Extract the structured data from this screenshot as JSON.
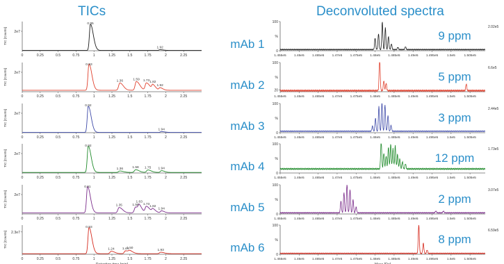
{
  "headings": {
    "tic": "TICs",
    "deconv": "Deconvoluted spectra"
  },
  "samples": [
    "mAb 1",
    "mAb 2",
    "mAb 3",
    "mAb 4",
    "mAb 5",
    "mAb 6"
  ],
  "ppm_labels": [
    "9 ppm",
    "5 ppm",
    "3 ppm",
    "12 ppm",
    "2 ppm",
    "8 ppm"
  ],
  "colors": [
    "#1a1a1a",
    "#e0402d",
    "#3d49a8",
    "#1f8a2a",
    "#7a2b8a",
    "#d62a1e"
  ],
  "chart_data": [
    {
      "type": "line",
      "panel": "TIC",
      "title": "mAb 1",
      "ylabel": "TIC [Counts]",
      "xlabel": "",
      "xlim": [
        0,
        2.5
      ],
      "ylim": [
        0,
        30000000
      ],
      "yticks": [
        {
          "v": 20000000,
          "label": "2e7"
        }
      ],
      "xticks": [
        "0",
        "0.25",
        "0.5",
        "0.75",
        "1",
        "1.25",
        "1.5",
        "1.75",
        "2",
        "2.25"
      ],
      "series": [
        {
          "peaks": [
            [
              0.95,
              27000000,
              0.025
            ],
            [
              1.92,
              700000,
              0.03
            ]
          ],
          "baseline": 300000
        }
      ],
      "annotations": [
        {
          "x": 0.95,
          "label": "0.95"
        },
        {
          "x": 1.92,
          "label": "1.92"
        }
      ]
    },
    {
      "type": "line",
      "panel": "TIC",
      "title": "mAb 2",
      "ylabel": "TIC [Counts]",
      "xlabel": "",
      "xlim": [
        0,
        2.5
      ],
      "ylim": [
        0,
        30000000
      ],
      "yticks": [
        {
          "v": 20000000,
          "label": "2e7"
        }
      ],
      "xticks": [
        "0",
        "0.25",
        "0.5",
        "0.75",
        "1",
        "1.25",
        "1.5",
        "1.75",
        "2",
        "2.25"
      ],
      "series": [
        {
          "peaks": [
            [
              0.93,
              27000000,
              0.025
            ],
            [
              1.36,
              7500000,
              0.03
            ],
            [
              1.59,
              9000000,
              0.03
            ],
            [
              1.73,
              7500000,
              0.03
            ],
            [
              1.82,
              5000000,
              0.025
            ],
            [
              1.92,
              2500000,
              0.025
            ]
          ],
          "baseline": 1500000
        }
      ],
      "annotations": [
        {
          "x": 0.93,
          "label": "0.93"
        },
        {
          "x": 1.36,
          "label": "1.36"
        },
        {
          "x": 1.59,
          "label": "1.59"
        },
        {
          "x": 1.73,
          "label": "1.73"
        },
        {
          "x": 1.82,
          "label": "1.82"
        },
        {
          "x": 1.92,
          "label": "1.92"
        }
      ]
    },
    {
      "type": "line",
      "panel": "TIC",
      "title": "mAb 3",
      "ylabel": "TIC [Counts]",
      "xlabel": "",
      "xlim": [
        0,
        2.5
      ],
      "ylim": [
        0,
        30000000
      ],
      "yticks": [
        {
          "v": 20000000,
          "label": "2e7"
        }
      ],
      "xticks": [
        "0",
        "0.25",
        "0.5",
        "0.75",
        "1",
        "1.25",
        "1.5",
        "1.75",
        "2",
        "2.25"
      ],
      "series": [
        {
          "peaks": [
            [
              0.92,
              27000000,
              0.025
            ],
            [
              1.94,
              800000,
              0.03
            ]
          ],
          "baseline": 300000
        }
      ],
      "annotations": [
        {
          "x": 0.92,
          "label": "0.92"
        },
        {
          "x": 1.94,
          "label": "1.94"
        }
      ]
    },
    {
      "type": "line",
      "panel": "TIC",
      "title": "mAb 4",
      "ylabel": "TIC [Counts]",
      "xlabel": "",
      "xlim": [
        0,
        2.5
      ],
      "ylim": [
        0,
        30000000
      ],
      "yticks": [
        {
          "v": 20000000,
          "label": "2e7"
        }
      ],
      "xticks": [
        "0",
        "0.25",
        "0.5",
        "0.75",
        "1",
        "1.25",
        "1.5",
        "1.75",
        "2",
        "2.25"
      ],
      "series": [
        {
          "peaks": [
            [
              0.92,
              27000000,
              0.025
            ],
            [
              1.36,
              1500000,
              0.03
            ],
            [
              1.58,
              2800000,
              0.03
            ],
            [
              1.75,
              2500000,
              0.03
            ],
            [
              1.94,
              1800000,
              0.025
            ]
          ],
          "baseline": 600000
        }
      ],
      "annotations": [
        {
          "x": 0.92,
          "label": "0.92"
        },
        {
          "x": 1.36,
          "label": "1.36"
        },
        {
          "x": 1.58,
          "label": "1.58"
        },
        {
          "x": 1.75,
          "label": "1.75"
        },
        {
          "x": 1.94,
          "label": "1.94"
        }
      ]
    },
    {
      "type": "line",
      "panel": "TIC",
      "title": "mAb 5",
      "ylabel": "TIC [Counts]",
      "xlabel": "",
      "xlim": [
        0,
        2.5
      ],
      "ylim": [
        0,
        30000000
      ],
      "yticks": [
        {
          "v": 20000000,
          "label": "2e7"
        }
      ],
      "xticks": [
        "0",
        "0.25",
        "0.5",
        "0.75",
        "1",
        "1.25",
        "1.5",
        "1.75",
        "2",
        "2.25"
      ],
      "series": [
        {
          "peaks": [
            [
              0.91,
              27000000,
              0.025
            ],
            [
              1.35,
              5500000,
              0.03
            ],
            [
              1.58,
              6000000,
              0.03
            ],
            [
              1.63,
              5500000,
              0.025
            ],
            [
              1.73,
              6500000,
              0.03
            ],
            [
              1.82,
              3500000,
              0.025
            ],
            [
              1.94,
              2000000,
              0.025
            ]
          ],
          "baseline": 1200000
        }
      ],
      "annotations": [
        {
          "x": 0.91,
          "label": "0.91"
        },
        {
          "x": 1.35,
          "label": "1.35"
        },
        {
          "x": 1.58,
          "label": "1.58"
        },
        {
          "x": 1.63,
          "label": "1.63"
        },
        {
          "x": 1.73,
          "label": "1.73"
        },
        {
          "x": 1.82,
          "label": "1.82"
        },
        {
          "x": 1.94,
          "label": "1.94"
        }
      ]
    },
    {
      "type": "line",
      "panel": "TIC",
      "title": "mAb 6",
      "ylabel": "TIC [Counts]",
      "xlabel": "Retention time [min]",
      "xlim": [
        0,
        2.5
      ],
      "ylim": [
        0,
        30000000
      ],
      "yticks": [
        {
          "v": 23000000,
          "label": "2.3e7"
        }
      ],
      "xticks": [
        "0",
        "0.25",
        "0.5",
        "0.75",
        "1",
        "1.25",
        "1.5",
        "1.75",
        "2",
        "2.25"
      ],
      "series": [
        {
          "peaks": [
            [
              0.93,
              27000000,
              0.025
            ],
            [
              1.24,
              2500000,
              0.03
            ],
            [
              1.44,
              3000000,
              0.03
            ],
            [
              1.5,
              2200000,
              0.03
            ],
            [
              1.93,
              1500000,
              0.03
            ]
          ],
          "baseline": 600000
        }
      ],
      "annotations": [
        {
          "x": 0.93,
          "label": "0.93"
        },
        {
          "x": 1.24,
          "label": "1.24"
        },
        {
          "x": 1.44,
          "label": "1.44"
        },
        {
          "x": 1.5,
          "label": "1.50"
        },
        {
          "x": 1.93,
          "label": "1.93"
        }
      ]
    },
    {
      "type": "line",
      "panel": "Deconvolution",
      "title": "mAb 1",
      "ylabel": "%",
      "xlabel": "",
      "xlim": [
        145500,
        150900
      ],
      "ylim": [
        0,
        100
      ],
      "yticks": [
        {
          "v": 100,
          "label": "100"
        },
        {
          "v": 50,
          "label": "%"
        },
        {
          "v": 0,
          "label": "0"
        }
      ],
      "xticks": [
        "1.455e5",
        "1.46e5",
        "1.465e5",
        "1.47e5",
        "1.475e5",
        "1.48e5",
        "1.485e5",
        "1.49e5",
        "1.495e5",
        "1.5e5",
        "1.505e5"
      ],
      "intensity_label": "2.02e5",
      "series": [
        {
          "peaks": [
            [
              148000,
              40
            ],
            [
              148090,
              55
            ],
            [
              148190,
              95
            ],
            [
              148270,
              75
            ],
            [
              148350,
              45
            ],
            [
              148430,
              20
            ],
            [
              148600,
              8
            ],
            [
              148800,
              10
            ]
          ],
          "baseline": 4
        }
      ]
    },
    {
      "type": "line",
      "panel": "Deconvolution",
      "title": "mAb 2",
      "ylabel": "%",
      "xlabel": "",
      "xlim": [
        145500,
        150900
      ],
      "ylim": [
        15,
        100
      ],
      "yticks": [
        {
          "v": 100,
          "label": "100"
        },
        {
          "v": 57,
          "label": "%"
        },
        {
          "v": 20,
          "label": "20"
        }
      ],
      "xticks": [
        "1.455e5",
        "1.46e5",
        "1.465e5",
        "1.47e5",
        "1.475e5",
        "1.48e5",
        "1.485e5",
        "1.49e5",
        "1.495e5",
        "1.5e5",
        "1.505e5"
      ],
      "intensity_label": "6.6e5",
      "series": [
        {
          "peaks": [
            [
              148120,
              98
            ],
            [
              148230,
              30
            ],
            [
              148290,
              22
            ],
            [
              150400,
              20
            ]
          ],
          "baseline": 18
        }
      ]
    },
    {
      "type": "line",
      "panel": "Deconvolution",
      "title": "mAb 3",
      "ylabel": "%",
      "xlabel": "",
      "xlim": [
        145500,
        150900
      ],
      "ylim": [
        0,
        100
      ],
      "yticks": [
        {
          "v": 100,
          "label": "100"
        },
        {
          "v": 50,
          "label": "%"
        },
        {
          "v": 0,
          "label": "0"
        }
      ],
      "xticks": [
        "1.455e5",
        "1.46e5",
        "1.465e5",
        "1.47e5",
        "1.475e5",
        "1.48e5",
        "1.485e5",
        "1.49e5",
        "1.495e5",
        "1.5e5",
        "1.505e5"
      ],
      "intensity_label": "2.44e5",
      "series": [
        {
          "peaks": [
            [
              147930,
              18
            ],
            [
              148010,
              45
            ],
            [
              148100,
              85
            ],
            [
              148180,
              98
            ],
            [
              148260,
              92
            ],
            [
              148340,
              55
            ],
            [
              148420,
              20
            ]
          ],
          "baseline": 5
        }
      ]
    },
    {
      "type": "line",
      "panel": "Deconvolution",
      "title": "mAb 4",
      "ylabel": "%",
      "xlabel": "",
      "xlim": [
        145500,
        150900
      ],
      "ylim": [
        0,
        100
      ],
      "yticks": [
        {
          "v": 100,
          "label": "100"
        },
        {
          "v": 50,
          "label": "%"
        },
        {
          "v": 0,
          "label": "0"
        }
      ],
      "xticks": [
        "1.455e5",
        "1.46e5",
        "1.465e5",
        "1.47e5",
        "1.475e5",
        "1.48e5",
        "1.485e5",
        "1.49e5",
        "1.495e5",
        "1.5e5",
        "1.505e5"
      ],
      "intensity_label": "1.73e5",
      "series": [
        {
          "peaks": [
            [
              148160,
              100
            ],
            [
              148230,
              55
            ],
            [
              148290,
              45
            ],
            [
              148350,
              75
            ],
            [
              148410,
              85
            ],
            [
              148470,
              70
            ],
            [
              148530,
              80
            ],
            [
              148590,
              50
            ],
            [
              148650,
              35
            ],
            [
              148720,
              25
            ],
            [
              148800,
              18
            ]
          ],
          "baseline": 14
        }
      ]
    },
    {
      "type": "line",
      "panel": "Deconvolution",
      "title": "mAb 5",
      "ylabel": "%",
      "xlabel": "",
      "xlim": [
        145500,
        150900
      ],
      "ylim": [
        0,
        100
      ],
      "yticks": [
        {
          "v": 100,
          "label": "100"
        },
        {
          "v": 50,
          "label": "%"
        },
        {
          "v": 0,
          "label": "0"
        }
      ],
      "xticks": [
        "1.455e5",
        "1.46e5",
        "1.465e5",
        "1.47e5",
        "1.475e5",
        "1.48e5",
        "1.485e5",
        "1.49e5",
        "1.495e5",
        "1.5e5",
        "1.505e5"
      ],
      "intensity_label": "3.07e5",
      "series": [
        {
          "peaks": [
            [
              147100,
              40
            ],
            [
              147180,
              70
            ],
            [
              147260,
              100
            ],
            [
              147340,
              80
            ],
            [
              147420,
              45
            ],
            [
              147500,
              20
            ],
            [
              149600,
              6
            ],
            [
              149800,
              6
            ]
          ],
          "baseline": 4
        }
      ]
    },
    {
      "type": "line",
      "panel": "Deconvolution",
      "title": "mAb 6",
      "ylabel": "%",
      "xlabel": "Mass [Da]",
      "xlim": [
        145500,
        150900
      ],
      "ylim": [
        0,
        100
      ],
      "yticks": [
        {
          "v": 100,
          "label": "100"
        },
        {
          "v": 50,
          "label": "%"
        },
        {
          "v": 0,
          "label": "0"
        }
      ],
      "xticks": [
        "1.455e5",
        "1.46e5",
        "1.465e5",
        "1.47e5",
        "1.475e5",
        "1.48e5",
        "1.485e5",
        "1.49e5",
        "1.495e5",
        "1.5e5",
        "1.505e5"
      ],
      "intensity_label": "6.59e5",
      "series": [
        {
          "peaks": [
            [
              149150,
              100
            ],
            [
              149270,
              35
            ],
            [
              149370,
              12
            ]
          ],
          "baseline": 3
        }
      ]
    }
  ]
}
